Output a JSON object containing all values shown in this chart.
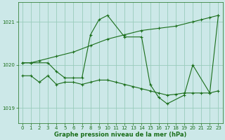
{
  "title": "Graphe pression niveau de la mer (hPa)",
  "bg_color": "#cce8e8",
  "grid_color": "#99ccbb",
  "line_color": "#1a6e1a",
  "marker": "+",
  "ylim": [
    1018.65,
    1021.45
  ],
  "yticks": [
    1019,
    1020,
    1021
  ],
  "xlim": [
    -0.5,
    23.5
  ],
  "xticks": [
    0,
    1,
    2,
    3,
    4,
    5,
    6,
    7,
    8,
    9,
    10,
    11,
    12,
    13,
    14,
    15,
    16,
    17,
    18,
    19,
    20,
    21,
    22,
    23
  ],
  "series": [
    {
      "x": [
        0,
        1,
        2,
        3,
        4,
        5,
        6,
        7,
        8,
        9,
        10,
        11,
        12,
        13,
        14,
        15,
        16,
        17,
        18,
        19,
        20,
        21,
        22,
        23
      ],
      "y": [
        1019.75,
        1019.75,
        1019.6,
        1019.75,
        1019.55,
        1019.6,
        1019.6,
        1019.55,
        1019.6,
        1019.65,
        1019.65,
        1019.6,
        1019.55,
        1019.5,
        1019.45,
        1019.4,
        1019.35,
        1019.3,
        1019.32,
        1019.35,
        1019.35,
        1019.35,
        1019.35,
        1019.4
      ]
    },
    {
      "x": [
        0,
        1,
        3,
        4,
        5,
        6,
        7,
        8,
        9,
        10,
        12,
        14,
        15,
        16,
        17,
        19,
        20,
        22,
        23
      ],
      "y": [
        1020.05,
        1020.05,
        1020.05,
        1019.85,
        1019.7,
        1019.7,
        1019.7,
        1020.7,
        1021.05,
        1021.15,
        1020.65,
        1020.65,
        1019.55,
        1019.25,
        1019.1,
        1019.3,
        1020.0,
        1019.35,
        1021.15
      ]
    },
    {
      "x": [
        0,
        1,
        2,
        4,
        6,
        8,
        10,
        12,
        14,
        16,
        18,
        20,
        21,
        22,
        23
      ],
      "y": [
        1020.05,
        1020.05,
        1020.1,
        1020.2,
        1020.3,
        1020.45,
        1020.6,
        1020.7,
        1020.8,
        1020.85,
        1020.9,
        1021.0,
        1021.05,
        1021.1,
        1021.15
      ]
    }
  ]
}
